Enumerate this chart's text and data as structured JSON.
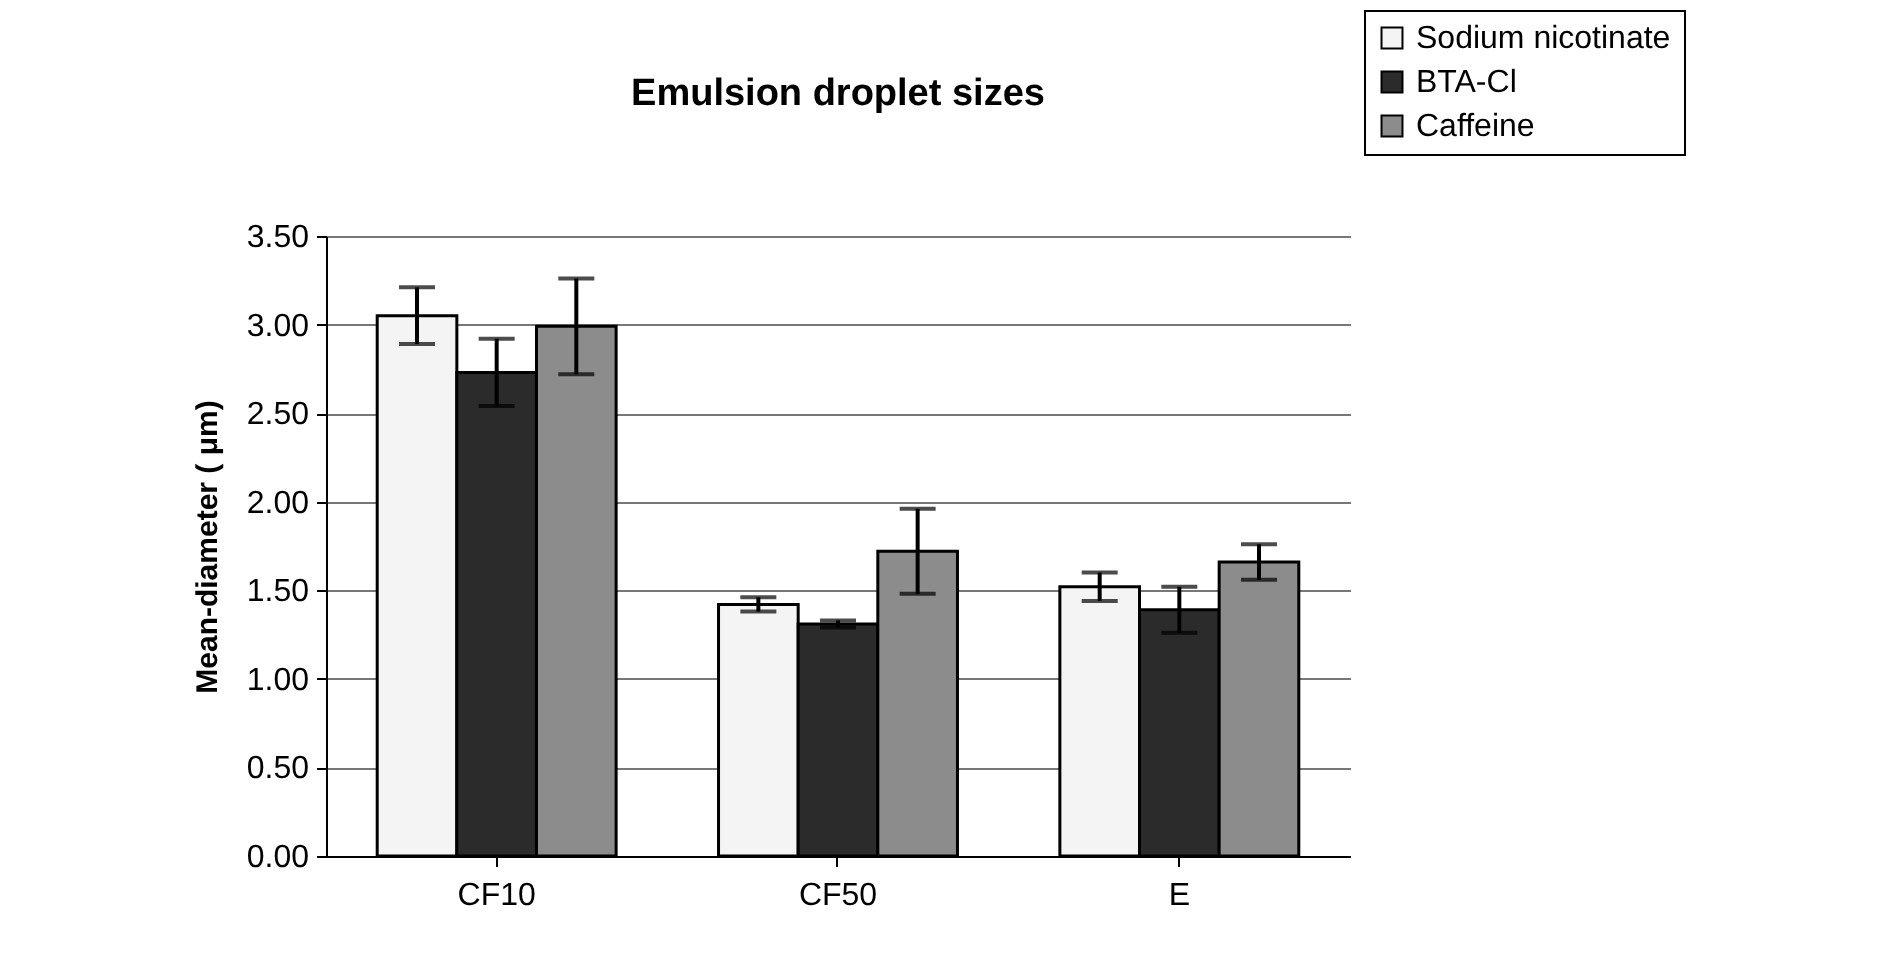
{
  "chart_data": {
    "type": "bar",
    "title": "Emulsion droplet sizes",
    "ylabel": "Mean-diameter ( μm)",
    "categories": [
      "CF10",
      "CF50",
      "E"
    ],
    "series": [
      {
        "name": "Sodium nicotinate",
        "color": "#f4f4f4",
        "values": [
          3.05,
          1.42,
          1.52
        ],
        "errors": [
          0.16,
          0.04,
          0.08
        ]
      },
      {
        "name": "BTA-Cl",
        "color": "#2b2b2b",
        "values": [
          2.73,
          1.31,
          1.39
        ],
        "errors": [
          0.19,
          0.02,
          0.13
        ]
      },
      {
        "name": "Caffeine",
        "color": "#8c8c8c",
        "values": [
          2.99,
          1.72,
          1.66
        ],
        "errors": [
          0.27,
          0.24,
          0.1
        ]
      }
    ],
    "ylim": [
      0,
      3.5
    ],
    "yticks": [
      {
        "value": 0,
        "label": "0.00"
      },
      {
        "value": 0.5,
        "label": "0.50"
      },
      {
        "value": 1,
        "label": "1.00"
      },
      {
        "value": 1.5,
        "label": "1.50"
      },
      {
        "value": 2,
        "label": "2.00"
      },
      {
        "value": 2.5,
        "label": "2.50"
      },
      {
        "value": 3,
        "label": "3.00"
      },
      {
        "value": 3.5,
        "label": "3.50"
      }
    ],
    "grid": "y",
    "legend": "top right"
  }
}
